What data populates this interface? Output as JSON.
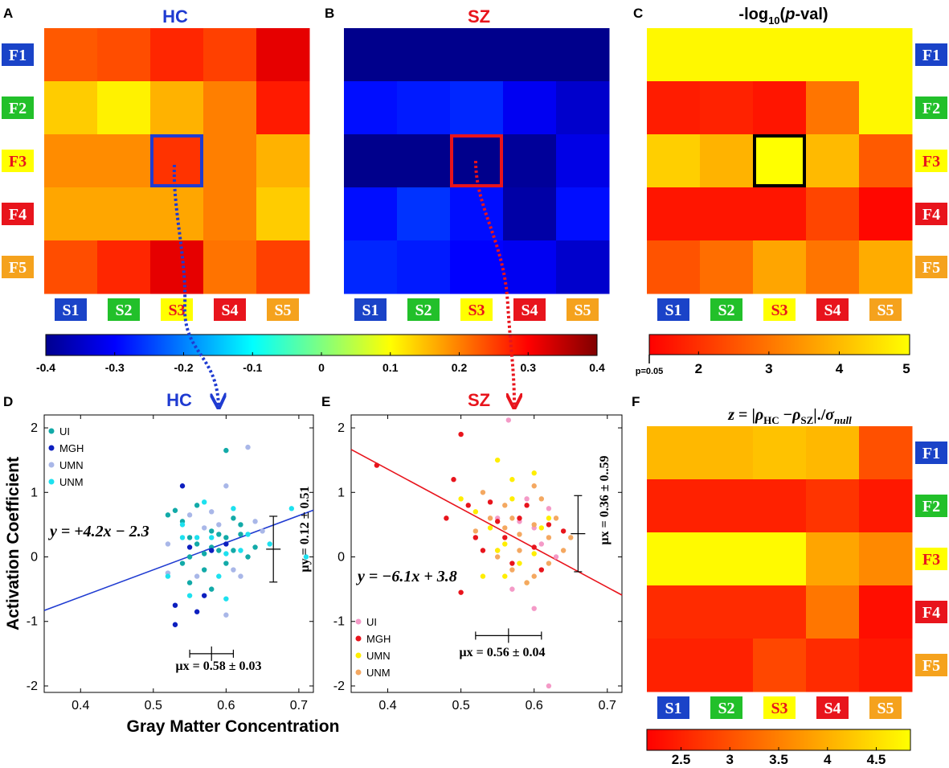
{
  "panel_letters": [
    "A",
    "B",
    "C",
    "D",
    "E",
    "F"
  ],
  "titles": {
    "A": "HC",
    "B": "SZ",
    "C": "-log10(p-val)",
    "C_parts": {
      "pre": "-log",
      "sub": "10",
      "open": "(",
      "p": "p",
      "post": "-val)"
    },
    "D": "HC",
    "E": "SZ",
    "F": "z = |ρHC −ρSZ|./σnull",
    "F_parts": {
      "z": "z",
      "eq": " = |",
      "rho1": "ρ",
      "sub1": "HC",
      "minus": " −",
      "rho2": "ρ",
      "sub2": "SZ",
      "mid": "|./",
      "sigma": "σ",
      "sub3": "null"
    }
  },
  "row_labels": [
    "F1",
    "F2",
    "F3",
    "F4",
    "F5"
  ],
  "col_labels": [
    "S1",
    "S2",
    "S3",
    "S4",
    "S5"
  ],
  "label_colors": {
    "F1": "#1a43c8",
    "F2": "#22c02a",
    "F3": "#ffff00",
    "F4": "#e8141c",
    "F5": "#f5a21d",
    "S1": "#1a43c8",
    "S2": "#22c02a",
    "S3": "#ffff00",
    "S4": "#e8141c",
    "S5": "#f5a21d"
  },
  "label_text_colors": {
    "F1": "#ffffff",
    "F2": "#ffffff",
    "F3": "#e8141c",
    "F4": "#ffffff",
    "F5": "#ffffff",
    "S1": "#ffffff",
    "S2": "#ffffff",
    "S3": "#e8141c",
    "S4": "#ffffff",
    "S5": "#ffffff"
  },
  "colors": {
    "hc_blue": "#1f3bd1",
    "sz_red": "#e8141c",
    "highlight_black": "#000000"
  },
  "chart_data": [
    {
      "id": "A",
      "type": "heatmap",
      "title": "HC",
      "rows": [
        "F1",
        "F2",
        "F3",
        "F4",
        "F5"
      ],
      "cols": [
        "S1",
        "S2",
        "S3",
        "S4",
        "S5"
      ],
      "values": [
        [
          0.23,
          0.24,
          0.27,
          0.25,
          0.32
        ],
        [
          0.14,
          0.11,
          0.16,
          0.2,
          0.28
        ],
        [
          0.19,
          0.19,
          0.26,
          0.2,
          0.16
        ],
        [
          0.17,
          0.17,
          0.17,
          0.2,
          0.14
        ],
        [
          0.24,
          0.27,
          0.32,
          0.21,
          0.25
        ]
      ],
      "colormap": "jet",
      "clim": [
        -0.4,
        0.4
      ],
      "highlight": {
        "row": 2,
        "col": 2
      }
    },
    {
      "id": "B",
      "type": "heatmap",
      "title": "SZ",
      "rows": [
        "F1",
        "F2",
        "F3",
        "F4",
        "F5"
      ],
      "cols": [
        "S1",
        "S2",
        "S3",
        "S4",
        "S5"
      ],
      "values": [
        [
          -0.39,
          -0.39,
          -0.39,
          -0.39,
          -0.39
        ],
        [
          -0.29,
          -0.28,
          -0.27,
          -0.31,
          -0.34
        ],
        [
          -0.39,
          -0.39,
          -0.39,
          -0.38,
          -0.32
        ],
        [
          -0.29,
          -0.26,
          -0.29,
          -0.37,
          -0.29
        ],
        [
          -0.27,
          -0.28,
          -0.3,
          -0.31,
          -0.34
        ]
      ],
      "colormap": "jet",
      "clim": [
        -0.4,
        0.4
      ],
      "highlight": {
        "row": 2,
        "col": 2
      }
    },
    {
      "id": "C",
      "type": "heatmap",
      "title": "-log10(p-val)",
      "rows": [
        "F1",
        "F2",
        "F3",
        "F4",
        "F5"
      ],
      "cols": [
        "S1",
        "S2",
        "S3",
        "S4",
        "S5"
      ],
      "values": [
        [
          4.9,
          4.9,
          4.9,
          4.9,
          4.9
        ],
        [
          1.7,
          1.8,
          1.6,
          3.0,
          4.9
        ],
        [
          4.3,
          3.9,
          5.0,
          4.0,
          2.6
        ],
        [
          1.6,
          1.6,
          1.6,
          2.3,
          1.4
        ],
        [
          2.5,
          2.9,
          3.7,
          3.0,
          3.8
        ]
      ],
      "colormap": "autumn",
      "clim": [
        1.3,
        5
      ],
      "highlight": {
        "row": 2,
        "col": 2
      },
      "colorbar": {
        "ticks": [
          2,
          3,
          4,
          5
        ],
        "extra_label": "p=0.05"
      }
    },
    {
      "id": "D",
      "type": "scatter",
      "title": "HC",
      "xlabel": "Gray Matter Concentration",
      "ylabel": "Activation Coefficient",
      "xlim": [
        0.35,
        0.72
      ],
      "ylim": [
        -2.1,
        2.2
      ],
      "xticks": [
        "0.4",
        "0.5",
        "0.6",
        "0.7"
      ],
      "yticks": [
        "2",
        "1",
        "0",
        "-1",
        "-2"
      ],
      "series": [
        {
          "name": "UI",
          "color": "#12aaa8",
          "points": [
            [
              0.53,
              0.72
            ],
            [
              0.54,
              0.55
            ],
            [
              0.55,
              0.3
            ],
            [
              0.56,
              0.2
            ],
            [
              0.57,
              0.05
            ],
            [
              0.58,
              0.4
            ],
            [
              0.59,
              0.1
            ],
            [
              0.6,
              0.3
            ],
            [
              0.61,
              0.6
            ],
            [
              0.62,
              0.5
            ],
            [
              0.63,
              0.0
            ],
            [
              0.55,
              -0.4
            ],
            [
              0.57,
              -0.2
            ],
            [
              0.58,
              0.15
            ],
            [
              0.6,
              -0.1
            ],
            [
              0.52,
              0.65
            ],
            [
              0.56,
              0.8
            ],
            [
              0.59,
              0.35
            ],
            [
              0.61,
              0.1
            ],
            [
              0.64,
              0.15
            ],
            [
              0.55,
              0.0
            ],
            [
              0.58,
              -0.5
            ],
            [
              0.62,
              0.35
            ],
            [
              0.6,
              1.65
            ],
            [
              0.54,
              -0.1
            ]
          ]
        },
        {
          "name": "MGH",
          "color": "#0d1fbf",
          "points": [
            [
              0.53,
              -1.05
            ],
            [
              0.54,
              1.1
            ],
            [
              0.56,
              -0.85
            ],
            [
              0.53,
              -0.75
            ],
            [
              0.58,
              0.1
            ],
            [
              0.55,
              0.15
            ],
            [
              0.57,
              -0.6
            ],
            [
              0.6,
              0.2
            ]
          ]
        },
        {
          "name": "UMN",
          "color": "#a9b7e8",
          "points": [
            [
              0.6,
              1.1
            ],
            [
              0.63,
              1.7
            ],
            [
              0.52,
              0.2
            ],
            [
              0.55,
              0.65
            ],
            [
              0.59,
              0.5
            ],
            [
              0.61,
              -0.2
            ],
            [
              0.6,
              -0.9
            ],
            [
              0.65,
              0.4
            ],
            [
              0.57,
              0.45
            ],
            [
              0.62,
              -0.3
            ],
            [
              0.52,
              -0.25
            ],
            [
              0.64,
              0.55
            ],
            [
              0.58,
              0.7
            ],
            [
              0.56,
              -0.3
            ]
          ]
        },
        {
          "name": "UNM",
          "color": "#1de1ef",
          "points": [
            [
              0.69,
              0.75
            ],
            [
              0.71,
              0.0
            ],
            [
              0.54,
              0.3
            ],
            [
              0.57,
              0.85
            ],
            [
              0.6,
              0.05
            ],
            [
              0.63,
              0.35
            ],
            [
              0.55,
              -0.6
            ],
            [
              0.6,
              -0.65
            ],
            [
              0.66,
              0.2
            ],
            [
              0.58,
              0.3
            ],
            [
              0.62,
              0.1
            ],
            [
              0.56,
              0.3
            ],
            [
              0.52,
              -0.3
            ],
            [
              0.59,
              -0.3
            ],
            [
              0.61,
              0.75
            ],
            [
              0.54,
              0.5
            ]
          ]
        }
      ],
      "fit": {
        "equation": "y = +4.2x − 2.3",
        "slope": 4.2,
        "intercept": -2.3,
        "color": "#1f3bd1"
      },
      "mean_x": {
        "label": "μx = 0.58 ± 0.03",
        "mean": 0.58,
        "sd": 0.03,
        "y": -1.5
      },
      "mean_y": {
        "label": "μy = 0.12 ± 0.51",
        "mean": 0.12,
        "sd": 0.51,
        "x": 0.665
      },
      "legend_position": "top-left"
    },
    {
      "id": "E",
      "type": "scatter",
      "title": "SZ",
      "xlabel": "",
      "ylabel": "",
      "xlim": [
        0.35,
        0.72
      ],
      "ylim": [
        -2.1,
        2.2
      ],
      "xticks": [
        "0.4",
        "0.5",
        "0.6",
        "0.7"
      ],
      "yticks": [
        "2",
        "1",
        "0",
        "-1",
        "-2"
      ],
      "series": [
        {
          "name": "UI",
          "color": "#f49ac7",
          "points": [
            [
              0.565,
              2.12
            ],
            [
              0.6,
              -0.8
            ],
            [
              0.62,
              -2.0
            ],
            [
              0.57,
              -0.5
            ],
            [
              0.59,
              0.9
            ],
            [
              0.55,
              0.6
            ],
            [
              0.52,
              0.3
            ],
            [
              0.61,
              0.2
            ],
            [
              0.63,
              0.0
            ],
            [
              0.58,
              0.55
            ],
            [
              0.62,
              0.75
            ],
            [
              0.55,
              0.1
            ],
            [
              0.6,
              0.45
            ]
          ]
        },
        {
          "name": "MGH",
          "color": "#e8141c",
          "points": [
            [
              0.385,
              1.42
            ],
            [
              0.5,
              1.9
            ],
            [
              0.49,
              1.2
            ],
            [
              0.48,
              0.6
            ],
            [
              0.5,
              -0.55
            ],
            [
              0.52,
              0.3
            ],
            [
              0.51,
              0.8
            ],
            [
              0.54,
              0.85
            ],
            [
              0.56,
              0.3
            ],
            [
              0.58,
              0.6
            ],
            [
              0.6,
              0.15
            ],
            [
              0.62,
              0.5
            ],
            [
              0.57,
              -0.1
            ],
            [
              0.53,
              0.1
            ],
            [
              0.59,
              0.8
            ],
            [
              0.64,
              0.4
            ],
            [
              0.61,
              -0.2
            ],
            [
              0.55,
              0.55
            ]
          ]
        },
        {
          "name": "UMN",
          "color": "#ffee00",
          "points": [
            [
              0.55,
              1.5
            ],
            [
              0.57,
              1.2
            ],
            [
              0.6,
              1.3
            ],
            [
              0.52,
              0.7
            ],
            [
              0.54,
              0.45
            ],
            [
              0.56,
              0.2
            ],
            [
              0.58,
              -0.1
            ],
            [
              0.6,
              0.05
            ],
            [
              0.62,
              0.6
            ],
            [
              0.53,
              -0.3
            ],
            [
              0.56,
              -0.3
            ],
            [
              0.59,
              -0.4
            ],
            [
              0.61,
              0.45
            ],
            [
              0.57,
              0.9
            ],
            [
              0.5,
              0.9
            ],
            [
              0.55,
              0.1
            ]
          ]
        },
        {
          "name": "UNM",
          "color": "#f4a861",
          "points": [
            [
              0.53,
              1.0
            ],
            [
              0.56,
              0.8
            ],
            [
              0.58,
              0.35
            ],
            [
              0.6,
              0.5
            ],
            [
              0.62,
              0.3
            ],
            [
              0.64,
              0.1
            ],
            [
              0.55,
              0.0
            ],
            [
              0.57,
              -0.2
            ],
            [
              0.59,
              -0.4
            ],
            [
              0.61,
              0.9
            ],
            [
              0.63,
              0.6
            ],
            [
              0.54,
              0.6
            ],
            [
              0.6,
              -0.3
            ],
            [
              0.65,
              0.3
            ],
            [
              0.52,
              0.4
            ],
            [
              0.56,
              0.45
            ],
            [
              0.58,
              0.1
            ],
            [
              0.62,
              -0.1
            ],
            [
              0.6,
              1.1
            ],
            [
              0.57,
              0.6
            ]
          ]
        }
      ],
      "fit": {
        "equation": "y = −6.1x + 3.8",
        "slope": -6.1,
        "intercept": 3.8,
        "color": "#e8141c"
      },
      "mean_x": {
        "label": "μx = 0.56 ± 0.04",
        "mean": 0.565,
        "sd": 0.045,
        "y": -1.22
      },
      "mean_y": {
        "label": "μx = 0.36 ± 0..59",
        "mean": 0.36,
        "sd": 0.59,
        "x": 0.66
      },
      "legend_position": "bottom-left"
    },
    {
      "id": "F",
      "type": "heatmap",
      "title": "z = |ρHC −ρSZ|./σnull",
      "rows": [
        "F1",
        "F2",
        "F3",
        "F4",
        "F5"
      ],
      "cols": [
        "S1",
        "S2",
        "S3",
        "S4",
        "S5"
      ],
      "values": [
        [
          4.1,
          4.1,
          4.2,
          4.1,
          3.0
        ],
        [
          2.5,
          2.5,
          2.5,
          2.7,
          2.4
        ],
        [
          4.8,
          4.8,
          4.8,
          3.9,
          3.6
        ],
        [
          2.6,
          2.6,
          2.6,
          3.4,
          2.3
        ],
        [
          2.5,
          2.5,
          2.9,
          2.6,
          2.4
        ]
      ],
      "colormap": "autumn",
      "clim": [
        2.15,
        4.85
      ],
      "colorbar": {
        "ticks": [
          2.5,
          3,
          3.5,
          4,
          4.5
        ],
        "tick_labels": [
          "2.5",
          "3",
          "3.5",
          "4",
          "4.5"
        ]
      }
    }
  ],
  "jet_colorbar": {
    "ticks": [
      -0.4,
      -0.3,
      -0.2,
      -0.1,
      0,
      0.1,
      0.2,
      0.3,
      0.4
    ],
    "tick_labels": [
      "-0.4",
      "-0.3",
      "-0.2",
      "-0.1",
      "0",
      "0.1",
      "0.2",
      "0.3",
      "0.4"
    ]
  },
  "autumn_colorbar_C": {
    "tick_labels": [
      "2",
      "3",
      "4",
      "5"
    ],
    "extra_label": "p=0.05"
  }
}
